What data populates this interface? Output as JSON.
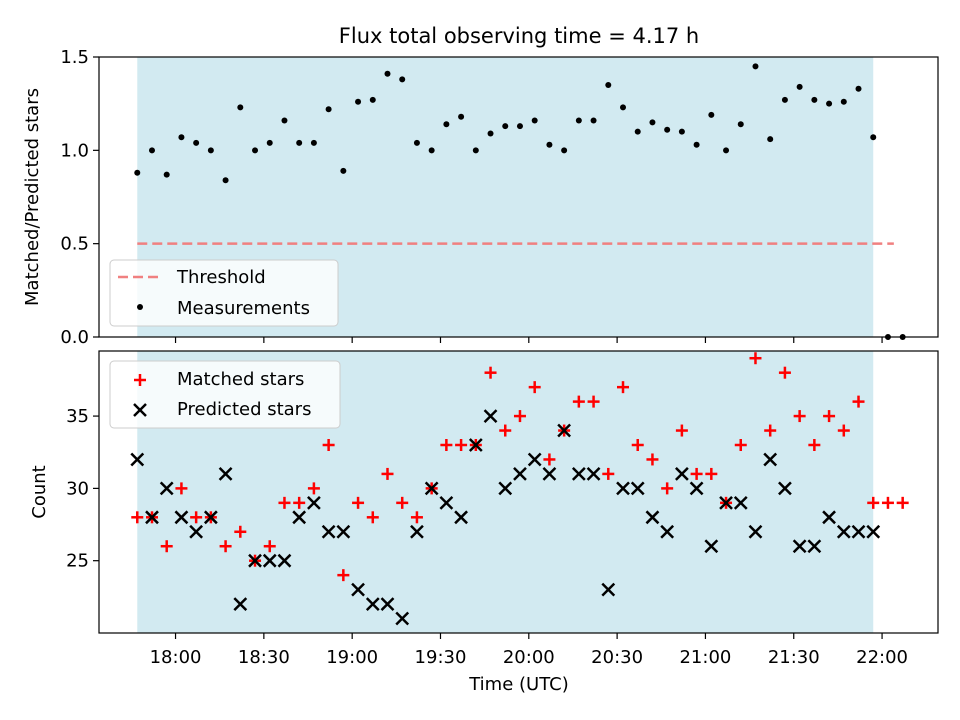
{
  "title": "Flux total observing time = 4.17 h",
  "colors": {
    "band": "#add8e6",
    "measurement": "#000000",
    "threshold": "#f08080",
    "matched": "#ff0000",
    "predicted": "#000000"
  },
  "chart_data": [
    {
      "type": "scatter",
      "ylabel": "Matched/Predicted stars",
      "xlabel": "",
      "ylim": [
        0,
        1.5
      ],
      "yticks": [
        0.0,
        0.5,
        1.0,
        1.5
      ],
      "ytick_labels": [
        "0.0",
        "0.5",
        "1.0",
        "1.5"
      ],
      "shaded_span": {
        "start": "17:47",
        "end": "21:57"
      },
      "threshold": {
        "name": "Threshold",
        "value": 0.5,
        "x_start": "17:47",
        "x_end": "22:04"
      },
      "legend": {
        "placement": "lower-left",
        "entries": [
          "Threshold",
          "Measurements"
        ]
      },
      "series": [
        {
          "name": "Measurements",
          "x": [
            "17:47",
            "17:52",
            "17:57",
            "18:02",
            "18:07",
            "18:12",
            "18:17",
            "18:22",
            "18:27",
            "18:32",
            "18:37",
            "18:42",
            "18:47",
            "18:52",
            "18:57",
            "19:02",
            "19:07",
            "19:12",
            "19:17",
            "19:22",
            "19:27",
            "19:32",
            "19:37",
            "19:42",
            "19:47",
            "19:52",
            "19:57",
            "20:02",
            "20:07",
            "20:12",
            "20:17",
            "20:22",
            "20:27",
            "20:32",
            "20:37",
            "20:42",
            "20:47",
            "20:52",
            "20:57",
            "21:02",
            "21:07",
            "21:12",
            "21:17",
            "21:22",
            "21:27",
            "21:32",
            "21:37",
            "21:42",
            "21:47",
            "21:52",
            "21:57",
            "22:02",
            "22:07"
          ],
          "y": [
            0.88,
            1.0,
            0.87,
            1.07,
            1.04,
            1.0,
            0.84,
            1.23,
            1.0,
            1.04,
            1.16,
            1.04,
            1.04,
            1.22,
            0.89,
            1.26,
            1.27,
            1.41,
            1.38,
            1.04,
            1.0,
            1.14,
            1.18,
            1.0,
            1.09,
            1.13,
            1.13,
            1.16,
            1.03,
            1.0,
            1.16,
            1.16,
            1.35,
            1.23,
            1.1,
            1.15,
            1.11,
            1.1,
            1.03,
            1.19,
            1.0,
            1.14,
            1.45,
            1.06,
            1.27,
            1.34,
            1.27,
            1.25,
            1.26,
            1.33,
            1.07,
            0.0,
            0.0
          ]
        }
      ]
    },
    {
      "type": "scatter",
      "ylabel": "Count",
      "xlabel": "Time (UTC)",
      "ylim": [
        20,
        39.5
      ],
      "yticks": [
        25,
        30,
        35
      ],
      "ytick_labels": [
        "25",
        "30",
        "35"
      ],
      "xlim": [
        "17:34",
        "22:19"
      ],
      "xticks": [
        "18:00",
        "18:30",
        "19:00",
        "19:30",
        "20:00",
        "20:30",
        "21:00",
        "21:30",
        "22:00"
      ],
      "xtick_labels": [
        "18:00",
        "18:30",
        "19:00",
        "19:30",
        "20:00",
        "20:30",
        "21:00",
        "21:30",
        "22:00"
      ],
      "shaded_span": {
        "start": "17:47",
        "end": "21:57"
      },
      "legend": {
        "placement": "upper-left",
        "entries": [
          "Matched stars",
          "Predicted stars"
        ]
      },
      "series": [
        {
          "name": "Matched stars",
          "marker": "plus",
          "x": [
            "17:47",
            "17:52",
            "17:57",
            "18:02",
            "18:07",
            "18:12",
            "18:17",
            "18:22",
            "18:27",
            "18:32",
            "18:37",
            "18:42",
            "18:47",
            "18:52",
            "18:57",
            "19:02",
            "19:07",
            "19:12",
            "19:17",
            "19:22",
            "19:27",
            "19:32",
            "19:37",
            "19:42",
            "19:47",
            "19:52",
            "19:57",
            "20:02",
            "20:07",
            "20:12",
            "20:17",
            "20:22",
            "20:27",
            "20:32",
            "20:37",
            "20:42",
            "20:47",
            "20:52",
            "20:57",
            "21:02",
            "21:07",
            "21:12",
            "21:17",
            "21:22",
            "21:27",
            "21:32",
            "21:37",
            "21:42",
            "21:47",
            "21:52",
            "21:57",
            "22:02",
            "22:07"
          ],
          "y": [
            28,
            28,
            26,
            30,
            28,
            28,
            26,
            27,
            25,
            26,
            29,
            29,
            30,
            33,
            24,
            29,
            28,
            31,
            29,
            28,
            30,
            33,
            33,
            33,
            38,
            34,
            35,
            37,
            32,
            34,
            36,
            36,
            31,
            37,
            33,
            32,
            30,
            34,
            31,
            31,
            29,
            33,
            39,
            34,
            38,
            35,
            33,
            35,
            34,
            36,
            29,
            29,
            29
          ]
        },
        {
          "name": "Predicted stars",
          "marker": "x",
          "x": [
            "17:47",
            "17:52",
            "17:57",
            "18:02",
            "18:07",
            "18:12",
            "18:17",
            "18:22",
            "18:27",
            "18:32",
            "18:37",
            "18:42",
            "18:47",
            "18:52",
            "18:57",
            "19:02",
            "19:07",
            "19:12",
            "19:17",
            "19:22",
            "19:27",
            "19:32",
            "19:37",
            "19:42",
            "19:47",
            "19:52",
            "19:57",
            "20:02",
            "20:07",
            "20:12",
            "20:17",
            "20:22",
            "20:27",
            "20:32",
            "20:37",
            "20:42",
            "20:47",
            "20:52",
            "20:57",
            "21:02",
            "21:07",
            "21:12",
            "21:17",
            "21:22",
            "21:27",
            "21:32",
            "21:37",
            "21:42",
            "21:47",
            "21:52",
            "21:57"
          ],
          "y": [
            32,
            28,
            30,
            28,
            27,
            28,
            31,
            22,
            25,
            25,
            25,
            28,
            29,
            27,
            27,
            23,
            22,
            22,
            21,
            27,
            30,
            29,
            28,
            33,
            35,
            30,
            31,
            32,
            31,
            34,
            31,
            31,
            23,
            30,
            30,
            28,
            27,
            31,
            30,
            26,
            29,
            29,
            27,
            32,
            30,
            26,
            26,
            28,
            27,
            27,
            27
          ]
        }
      ]
    }
  ]
}
